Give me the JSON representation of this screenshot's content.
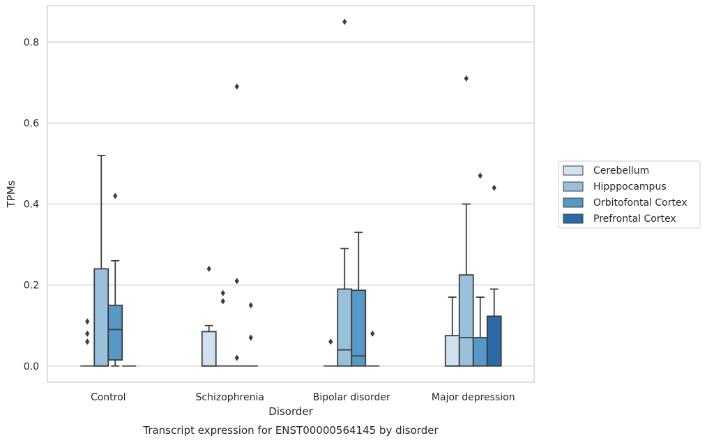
{
  "chart_data": {
    "type": "box",
    "xlabel": "Disorder",
    "ylabel": "TPMs",
    "caption": "Transcript expression for ENST00000564145 by disorder",
    "ylim": [
      -0.04,
      0.89
    ],
    "yticks": [
      0.0,
      0.2,
      0.4,
      0.6,
      0.8
    ],
    "ytick_labels": [
      "0.0",
      "0.2",
      "0.4",
      "0.6",
      "0.8"
    ],
    "grid": "horizontal",
    "legend_position": "right",
    "categories": [
      "Control",
      "Schizophrenia",
      "Bipolar disorder",
      "Major depression"
    ],
    "series": [
      {
        "name": "Cerebellum",
        "color": "#d1e1f0",
        "boxes": [
          {
            "q1": 0,
            "median": 0,
            "q3": 0,
            "whisker_low": 0,
            "whisker_high": 0,
            "outliers": [
              0.06,
              0.08,
              0.11
            ]
          },
          {
            "q1": 0,
            "median": 0,
            "q3": 0.085,
            "whisker_low": 0,
            "whisker_high": 0.1,
            "outliers": [
              0.24
            ]
          },
          {
            "q1": 0,
            "median": 0,
            "q3": 0,
            "whisker_low": 0,
            "whisker_high": 0,
            "outliers": [
              0.06
            ]
          },
          {
            "q1": 0,
            "median": 0,
            "q3": 0.075,
            "whisker_low": 0,
            "whisker_high": 0.17,
            "outliers": []
          }
        ]
      },
      {
        "name": "Hipppocampus",
        "color": "#9ac1dc",
        "boxes": [
          {
            "q1": 0,
            "median": 0,
            "q3": 0.24,
            "whisker_low": 0,
            "whisker_high": 0.52,
            "outliers": []
          },
          {
            "q1": 0,
            "median": 0,
            "q3": 0,
            "whisker_low": 0,
            "whisker_high": 0,
            "outliers": [
              0.16,
              0.18
            ]
          },
          {
            "q1": 0,
            "median": 0.04,
            "q3": 0.19,
            "whisker_low": 0,
            "whisker_high": 0.29,
            "outliers": [
              0.85
            ]
          },
          {
            "q1": 0,
            "median": 0.07,
            "q3": 0.225,
            "whisker_low": 0,
            "whisker_high": 0.4,
            "outliers": [
              0.71
            ]
          }
        ]
      },
      {
        "name": "Orbitofontal Cortex",
        "color": "#5898c6",
        "boxes": [
          {
            "q1": 0.015,
            "median": 0.09,
            "q3": 0.15,
            "whisker_low": 0,
            "whisker_high": 0.26,
            "outliers": [
              0.42
            ]
          },
          {
            "q1": 0,
            "median": 0,
            "q3": 0,
            "whisker_low": 0,
            "whisker_high": 0,
            "outliers": [
              0.02,
              0.21,
              0.69
            ]
          },
          {
            "q1": 0,
            "median": 0.025,
            "q3": 0.187,
            "whisker_low": 0,
            "whisker_high": 0.33,
            "outliers": []
          },
          {
            "q1": 0,
            "median": 0.07,
            "q3": 0.07,
            "whisker_low": 0,
            "whisker_high": 0.17,
            "outliers": [
              0.47
            ]
          }
        ]
      },
      {
        "name": "Prefrontal Cortex",
        "color": "#2b6aa6",
        "boxes": [
          {
            "q1": 0,
            "median": 0,
            "q3": 0,
            "whisker_low": 0,
            "whisker_high": 0,
            "outliers": []
          },
          {
            "q1": 0,
            "median": 0,
            "q3": 0,
            "whisker_low": 0,
            "whisker_high": 0,
            "outliers": [
              0.07,
              0.15
            ]
          },
          {
            "q1": 0,
            "median": 0,
            "q3": 0,
            "whisker_low": 0,
            "whisker_high": 0,
            "outliers": [
              0.08
            ]
          },
          {
            "q1": 0,
            "median": 0.123,
            "q3": 0.123,
            "whisker_low": 0,
            "whisker_high": 0.19,
            "outliers": [
              0.44
            ]
          }
        ]
      }
    ]
  }
}
